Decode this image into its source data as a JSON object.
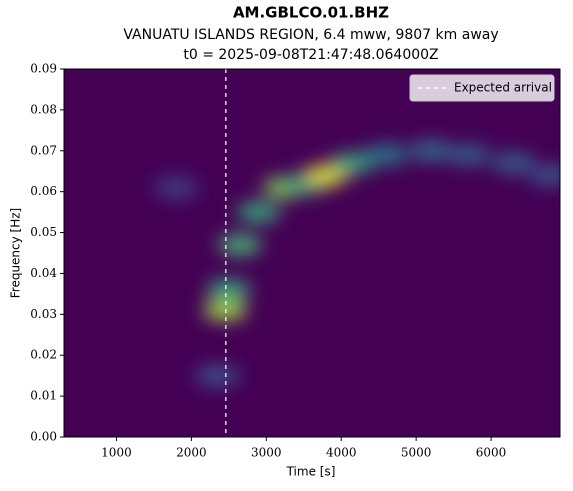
{
  "chart_data": {
    "type": "spectrogram",
    "title": "AM.GBLCO.01.BHZ",
    "subtitle": "VANUATU ISLANDS REGION, 6.4 mww, 9807 km away",
    "subtitle2": "t0 = 2025-09-08T21:47:48.064000Z",
    "xlabel": "Time [s]",
    "ylabel": "Frequency [Hz]",
    "xlim": [
      300,
      6920
    ],
    "ylim": [
      0,
      0.09
    ],
    "xticks": [
      1000,
      2000,
      3000,
      4000,
      5000,
      6000
    ],
    "yticks": [
      {
        "value": 0,
        "label": "0.00"
      },
      {
        "value": 0.01,
        "label": "0.01"
      },
      {
        "value": 0.02,
        "label": "0.02"
      },
      {
        "value": 0.03,
        "label": "0.03"
      },
      {
        "value": 0.04,
        "label": "0.04"
      },
      {
        "value": 0.05,
        "label": "0.05"
      },
      {
        "value": 0.06,
        "label": "0.06"
      },
      {
        "value": 0.07,
        "label": "0.07"
      },
      {
        "value": 0.08,
        "label": "0.08"
      },
      {
        "value": 0.09,
        "label": "0.09"
      }
    ],
    "background": "#440154",
    "energy": {
      "x": [
        2350,
        2450,
        2500,
        2650,
        2900,
        3250,
        3550,
        3800,
        4150,
        4600,
        5200,
        5700,
        6300,
        6800,
        1800
      ],
      "values": [
        0.015,
        0.031,
        0.036,
        0.047,
        0.055,
        0.061,
        0.062,
        0.064,
        0.067,
        0.069,
        0.07,
        0.069,
        0.067,
        0.064,
        0.061
      ],
      "intensity": [
        0.25,
        0.85,
        0.6,
        0.65,
        0.6,
        0.8,
        0.6,
        0.95,
        0.6,
        0.4,
        0.35,
        0.3,
        0.3,
        0.25,
        0.2
      ]
    },
    "arrival": {
      "name": "Expected arrival",
      "x": 2460,
      "color": "#ffffff"
    },
    "legend": "upper right"
  }
}
